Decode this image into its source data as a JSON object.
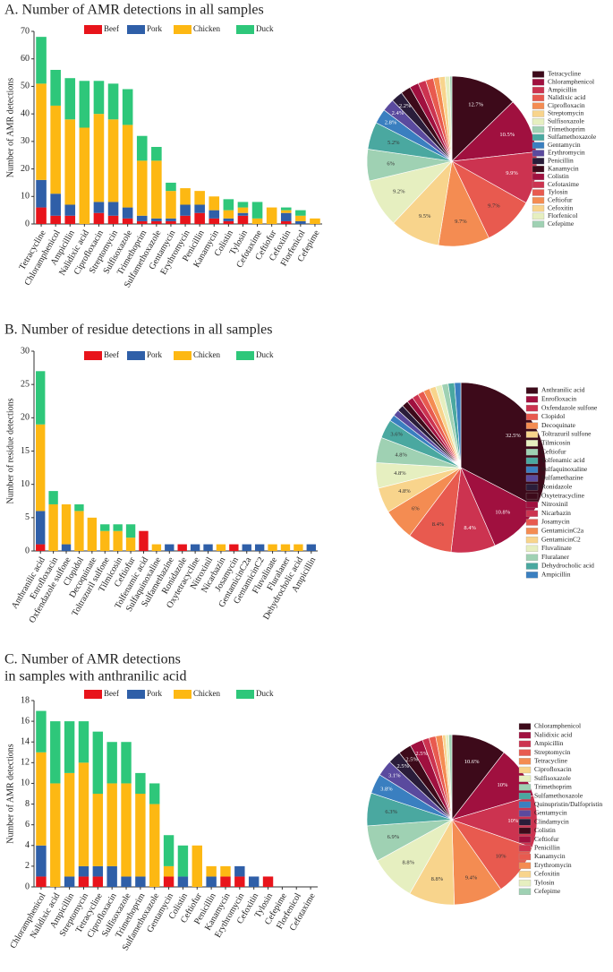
{
  "chart_data": [
    {
      "type": "bar",
      "title": [
        "A. Number of AMR detections in all samples"
      ],
      "ylabel": "Number of AMR detections",
      "categories": [
        "Tetracycline",
        "Chloramphenicol",
        "Ampicillin",
        "Nalidixic acid",
        "Ciprofloxacin",
        "Streptomycin",
        "Sulfisoxazole",
        "Trimethoprim",
        "Sulfamethoxazole",
        "Gentamycin",
        "Erythromycin",
        "Penicillin",
        "Kanamycin",
        "Colistin",
        "Tylosin",
        "Cefotaxime",
        "Ceftiofur",
        "Cefoxitin",
        "Florfenicol",
        "Cefepime"
      ],
      "series": [
        {
          "name": "Beef",
          "color": "#e8141b",
          "values": [
            6,
            3,
            3,
            0,
            4,
            3,
            2,
            1,
            1,
            1,
            3,
            4,
            2,
            1,
            3,
            0,
            0,
            1,
            0,
            0
          ]
        },
        {
          "name": "Pork",
          "color": "#2f5fa8",
          "values": [
            10,
            8,
            4,
            0,
            4,
            5,
            4,
            2,
            1,
            1,
            4,
            3,
            3,
            1,
            1,
            0,
            0,
            3,
            1,
            0
          ]
        },
        {
          "name": "Chicken",
          "color": "#fdb813",
          "values": [
            35,
            32,
            31,
            35,
            32,
            30,
            30,
            20,
            21,
            10,
            6,
            5,
            5,
            3,
            2,
            2,
            6,
            1,
            2,
            2
          ]
        },
        {
          "name": "Duck",
          "color": "#2ec77a",
          "values": [
            17,
            13,
            15,
            17,
            12,
            13,
            13,
            9,
            5,
            3,
            0,
            0,
            0,
            4,
            2,
            6,
            0,
            1,
            2,
            0
          ]
        }
      ],
      "stacked": true,
      "ylim": [
        0,
        70
      ],
      "yticks": [
        0,
        10,
        20,
        30,
        40,
        50,
        60,
        70
      ]
    },
    {
      "type": "pie",
      "categories": [
        "Tetracycline",
        "Chloramphenicol",
        "Ampicillin",
        "Nalidixic acid",
        "Ciprofloxacin",
        "Streptomycin",
        "Sulfisoxazole",
        "Trimethoprim",
        "Sulfamethoxazole",
        "Gentamycin",
        "Erythromycin",
        "Penicillin",
        "Kanamycin",
        "Colistin",
        "Cefotaxime",
        "Tylosin",
        "Ceftiofur",
        "Cefoxitin",
        "Florfenicol",
        "Cefepime"
      ],
      "values": [
        12.7,
        10.5,
        9.9,
        9.7,
        9.7,
        9.5,
        9.2,
        6,
        5.2,
        2.8,
        2.4,
        2.2,
        1.9,
        1.7,
        1.5,
        1.5,
        1.1,
        1.1,
        0.9,
        0.4
      ],
      "value_labels": [
        "12.7%",
        "10.5%",
        "9.9%",
        "9.7%",
        "9.7%",
        "9.5%",
        "9.2%",
        "6%",
        "5.2%",
        "2.8%",
        "2.4%",
        "2.2%",
        null,
        null,
        null,
        null,
        null,
        null,
        null,
        null
      ],
      "colors": [
        "#3d0a1a",
        "#a0103f",
        "#cc3350",
        "#e85a4f",
        "#f48c52",
        "#f8d48c",
        "#e6efc0",
        "#9fd1b3",
        "#4aa8a0",
        "#3a7fc0",
        "#5a4a9e",
        "#2a1d3a"
      ]
    },
    {
      "type": "bar",
      "title": [
        "B. Number of residue detections in all samples"
      ],
      "ylabel": "Number of residue detections",
      "categories": [
        "Anthranilic acid",
        "Enrofloxacin",
        "Oxfendazole sulfone",
        "Clopidol",
        "Decoquinate",
        "Toltrazuril sulfone",
        "Tilmicosin",
        "Ceftiofur",
        "Tolfenamic acid",
        "Sulfaquinoxaline",
        "Sulfamethazine",
        "Ronidazole",
        "Oxytetracycline",
        "Nitroxinil",
        "Nicarbazin",
        "Josamycin",
        "GentamicinC2a",
        "GentamicinC2",
        "Fluvalinate",
        "Fluralaner",
        "Dehydrocholic acid",
        "Ampicillin"
      ],
      "series": [
        {
          "name": "Beef",
          "color": "#e8141b",
          "values": [
            1,
            0,
            0,
            0,
            0,
            0,
            0,
            0,
            3,
            0,
            0,
            1,
            0,
            0,
            0,
            1,
            0,
            0,
            0,
            0,
            0,
            0
          ]
        },
        {
          "name": "Pork",
          "color": "#2f5fa8",
          "values": [
            5,
            0,
            1,
            0,
            0,
            0,
            0,
            0,
            0,
            0,
            1,
            0,
            1,
            1,
            0,
            0,
            1,
            1,
            0,
            0,
            0,
            1
          ]
        },
        {
          "name": "Chicken",
          "color": "#fdb813",
          "values": [
            13,
            7,
            6,
            6,
            5,
            3,
            3,
            2,
            0,
            1,
            0,
            0,
            0,
            0,
            1,
            0,
            0,
            0,
            1,
            1,
            1,
            0
          ]
        },
        {
          "name": "Duck",
          "color": "#2ec77a",
          "values": [
            8,
            2,
            0,
            1,
            0,
            1,
            1,
            2,
            0,
            0,
            0,
            0,
            0,
            0,
            0,
            0,
            0,
            0,
            0,
            0,
            0,
            0
          ]
        }
      ],
      "stacked": true,
      "ylim": [
        0,
        30
      ],
      "yticks": [
        0,
        5,
        10,
        15,
        20,
        25,
        30
      ]
    },
    {
      "type": "pie",
      "categories": [
        "Anthranilic acid",
        "Enrofloxacin",
        "Oxfendazole sulfone",
        "Clopidol",
        "Decoquinate",
        "Toltrazuril sulfone",
        "Tilmicosin",
        "Ceftiofur",
        "Tolfenamic acid",
        "Sulfaquinoxaline",
        "Sulfamethazine",
        "Ronidazole",
        "Oxytetracycline",
        "Nitroxinil",
        "Nicarbazin",
        "Josamycin",
        "GentamicinC2a",
        "GentamicinC2",
        "Fluvalinate",
        "Fluralaner",
        "Dehydrocholic acid",
        "Ampicillin"
      ],
      "values": [
        32.5,
        10.8,
        8.4,
        8.4,
        6,
        4.8,
        4.8,
        4.8,
        3.6,
        1.2,
        1.2,
        1.2,
        1.2,
        1.2,
        1.2,
        1.2,
        1.2,
        1.2,
        1.2,
        1.2,
        1.2,
        1.2
      ],
      "value_labels": [
        "32.5%",
        "10.8%",
        "8.4%",
        "8.4%",
        "6%",
        "4.8%",
        "4.8%",
        "4.8%",
        "3.6%",
        null,
        null,
        null,
        null,
        null,
        null,
        null,
        null,
        null,
        null,
        null,
        null,
        null
      ],
      "colors": [
        "#3d0a1a",
        "#a0103f",
        "#cc3350",
        "#e85a4f",
        "#f48c52",
        "#f8d48c",
        "#e6efc0",
        "#9fd1b3",
        "#4aa8a0",
        "#3a7fc0",
        "#5a4a9e",
        "#2a1d3a"
      ]
    },
    {
      "type": "bar",
      "title": [
        "C. Number of AMR detections",
        "in samples with anthranilic acid"
      ],
      "ylabel": "Number of AMR detections",
      "categories": [
        "Chloramphenicol",
        "Nalidixic acid",
        "Ampicillin",
        "Streptomycin",
        "Tetracycline",
        "Ciprofloxacin",
        "Sulfisoxazole",
        "Trimethoprim",
        "Sulfamethoxazole",
        "Gentamycin",
        "Colistin",
        "Ceftiofur",
        "Penicillin",
        "Kanamycin",
        "Erythromycin",
        "Cefoxitin",
        "Tylosin",
        "Cefepime",
        "Florfenicol",
        "Cefotaxime"
      ],
      "series": [
        {
          "name": "Beef",
          "color": "#e8141b",
          "values": [
            1,
            0,
            0,
            1,
            1,
            0,
            0,
            0,
            0,
            1,
            0,
            0,
            0,
            1,
            1,
            0,
            1,
            0,
            0,
            0
          ]
        },
        {
          "name": "Pork",
          "color": "#2f5fa8",
          "values": [
            3,
            0,
            1,
            1,
            1,
            2,
            1,
            1,
            0,
            0,
            1,
            0,
            1,
            0,
            1,
            1,
            0,
            0,
            0,
            0
          ]
        },
        {
          "name": "Chicken",
          "color": "#fdb813",
          "values": [
            9,
            10,
            10,
            10,
            7,
            8,
            9,
            8,
            8,
            1,
            0,
            4,
            1,
            1,
            0,
            0,
            0,
            0,
            0,
            0
          ]
        },
        {
          "name": "Duck",
          "color": "#2ec77a",
          "values": [
            4,
            6,
            5,
            4,
            6,
            4,
            4,
            2,
            2,
            3,
            3,
            0,
            0,
            0,
            0,
            0,
            0,
            0,
            0,
            0
          ]
        }
      ],
      "stacked": true,
      "ylim": [
        0,
        18
      ],
      "yticks": [
        0,
        2,
        4,
        6,
        8,
        10,
        12,
        14,
        16,
        18
      ]
    },
    {
      "type": "pie",
      "categories": [
        "Chloramphenicol",
        "Nalidixic acid",
        "Ampicillin",
        "Streptomycin",
        "Tetracycline",
        "Ciprofloxacin",
        "Sulfisoxazole",
        "Trimethoprim",
        "Sulfamethoxazole",
        "Quinupristin/Dalfopristin",
        "Gentamycin",
        "Clindamycin",
        "Colistin",
        "Ceftiofur",
        "Penicillin",
        "Kanamycin",
        "Erythromycin",
        "Cefoxitin",
        "Tylosin",
        "Cefepime"
      ],
      "values": [
        10.6,
        10,
        10,
        10,
        9.4,
        8.8,
        8.8,
        6.9,
        6.3,
        3.8,
        3.1,
        2.5,
        2.5,
        2.5,
        1.3,
        1.3,
        1.3,
        0.6,
        0.6,
        0.6
      ],
      "value_labels": [
        "10.6%",
        "10%",
        "10%",
        "10%",
        "9.4%",
        "8.8%",
        "8.8%",
        "6.9%",
        "6.3%",
        "3.8%",
        "3.1%",
        "2.5%",
        "2.5%",
        "2.5%",
        null,
        null,
        null,
        null,
        null,
        null
      ],
      "colors": [
        "#3d0a1a",
        "#a0103f",
        "#cc3350",
        "#e85a4f",
        "#f48c52",
        "#f8d48c",
        "#e6efc0",
        "#9fd1b3",
        "#4aa8a0",
        "#3a7fc0",
        "#5a4a9e",
        "#2a1d3a"
      ]
    }
  ]
}
